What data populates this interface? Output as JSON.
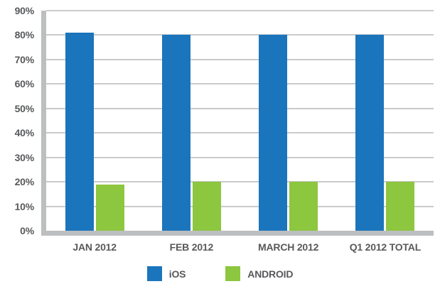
{
  "chart_data": {
    "type": "bar",
    "categories": [
      "JAN 2012",
      "FEB 2012",
      "MARCH 2012",
      "Q1 2012 TOTAL"
    ],
    "series": [
      {
        "name": "iOS",
        "color": "#1b75bc",
        "values": [
          81,
          80,
          80,
          80
        ]
      },
      {
        "name": "ANDROID",
        "color": "#8dc63f",
        "values": [
          19,
          20,
          20,
          20
        ]
      }
    ],
    "title": "",
    "xlabel": "",
    "ylabel": "",
    "ylim": [
      0,
      90
    ],
    "ytick_step": 10,
    "ytick_suffix": "%",
    "grid": true,
    "legend_position": "bottom"
  },
  "colors": {
    "background": "#ffffff",
    "axis": "#bcbec0",
    "grid": "#c9cacb",
    "text": "#58595b",
    "ios_bar": "#1b75bc",
    "android_bar": "#8dc63f"
  }
}
